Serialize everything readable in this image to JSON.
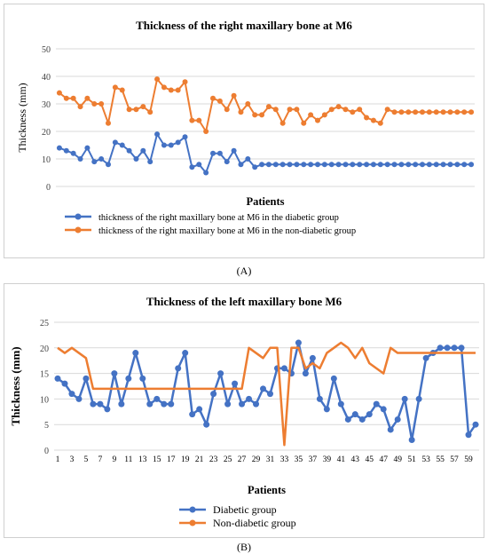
{
  "colors": {
    "diabetic": "#4472C4",
    "non_diabetic": "#ED7D31",
    "grid": "#d9d9d9",
    "axis_text": "#404040"
  },
  "captions": [
    "(A)",
    "(B)"
  ],
  "chart_data": [
    {
      "type": "line",
      "title": "Thickness of the right maxillary bone at M6",
      "xlabel": "Patients",
      "ylabel": "Thickness (mm)",
      "ylim": [
        0,
        50
      ],
      "yticks": [
        0,
        10,
        20,
        30,
        40,
        50
      ],
      "xticks_shown": false,
      "grid": true,
      "legend_position": "bottom",
      "markers": true,
      "x": [
        1,
        2,
        3,
        4,
        5,
        6,
        7,
        8,
        9,
        10,
        11,
        12,
        13,
        14,
        15,
        16,
        17,
        18,
        19,
        20,
        21,
        22,
        23,
        24,
        25,
        26,
        27,
        28,
        29,
        30,
        31,
        32,
        33,
        34,
        35,
        36,
        37,
        38,
        39,
        40,
        41,
        42,
        43,
        44,
        45,
        46,
        47,
        48,
        49,
        50,
        51,
        52,
        53,
        54,
        55,
        56,
        57,
        58,
        59,
        60
      ],
      "series": [
        {
          "name": "thickness of the right maxillary bone at M6 in the diabetic group",
          "color_key": "diabetic",
          "values": [
            14,
            13,
            12,
            10,
            14,
            9,
            10,
            8,
            16,
            15,
            13,
            10,
            13,
            9,
            19,
            15,
            15,
            16,
            18,
            7,
            8,
            5,
            12,
            12,
            9,
            13,
            8,
            10,
            7,
            8,
            8,
            8,
            8,
            8,
            8,
            8,
            8,
            8,
            8,
            8,
            8,
            8,
            8,
            8,
            8,
            8,
            8,
            8,
            8,
            8,
            8,
            8,
            8,
            8,
            8,
            8,
            8,
            8,
            8,
            8
          ]
        },
        {
          "name": "thickness of the right maxillary bone at M6 in the  non-diabetic group",
          "color_key": "non_diabetic",
          "values": [
            34,
            32,
            32,
            29,
            32,
            30,
            30,
            23,
            36,
            35,
            28,
            28,
            29,
            27,
            39,
            36,
            35,
            35,
            38,
            24,
            24,
            20,
            32,
            31,
            28,
            33,
            27,
            30,
            26,
            26,
            29,
            28,
            23,
            28,
            28,
            23,
            26,
            24,
            26,
            28,
            29,
            28,
            27,
            28,
            25,
            24,
            23,
            28,
            27,
            27,
            27,
            27,
            27,
            27,
            27,
            27,
            27,
            27,
            27,
            27
          ]
        }
      ]
    },
    {
      "type": "line",
      "title": "Thickness of the left maxillary bone M6",
      "xlabel": "Patients",
      "ylabel": "Thickness (mm)",
      "ylim": [
        0,
        25
      ],
      "yticks": [
        0,
        5,
        10,
        15,
        20,
        25
      ],
      "xticks_shown": true,
      "xtick_labels": [
        1,
        3,
        5,
        7,
        9,
        11,
        13,
        15,
        17,
        19,
        21,
        23,
        25,
        27,
        29,
        31,
        33,
        35,
        37,
        39,
        41,
        43,
        45,
        47,
        49,
        51,
        53,
        55,
        57,
        59
      ],
      "grid": true,
      "legend_position": "bottom",
      "x": [
        1,
        2,
        3,
        4,
        5,
        6,
        7,
        8,
        9,
        10,
        11,
        12,
        13,
        14,
        15,
        16,
        17,
        18,
        19,
        20,
        21,
        22,
        23,
        24,
        25,
        26,
        27,
        28,
        29,
        30,
        31,
        32,
        33,
        34,
        35,
        36,
        37,
        38,
        39,
        40,
        41,
        42,
        43,
        44,
        45,
        46,
        47,
        48,
        49,
        50,
        51,
        52,
        53,
        54,
        55,
        56,
        57,
        58,
        59,
        60
      ],
      "series": [
        {
          "name": "Diabetic group",
          "color_key": "diabetic",
          "markers": true,
          "values": [
            14,
            13,
            11,
            10,
            14,
            9,
            9,
            8,
            15,
            9,
            14,
            19,
            14,
            9,
            10,
            9,
            9,
            16,
            19,
            7,
            8,
            5,
            11,
            15,
            9,
            13,
            9,
            10,
            9,
            12,
            11,
            16,
            16,
            15,
            21,
            15,
            18,
            10,
            8,
            14,
            9,
            6,
            7,
            6,
            7,
            9,
            8,
            4,
            6,
            10,
            2,
            10,
            18,
            19,
            20,
            20,
            20,
            20,
            3,
            5
          ]
        },
        {
          "name": "Non-diabetic group",
          "color_key": "non_diabetic",
          "markers": false,
          "values": [
            20,
            19,
            20,
            19,
            18,
            12,
            12,
            12,
            12,
            12,
            12,
            12,
            12,
            12,
            12,
            12,
            12,
            12,
            12,
            12,
            12,
            12,
            12,
            12,
            12,
            12,
            12,
            20,
            19,
            18,
            20,
            20,
            1,
            20,
            20,
            16,
            17,
            16,
            19,
            20,
            21,
            20,
            18,
            20,
            17,
            16,
            15,
            20,
            19,
            19,
            19,
            19,
            19,
            19,
            19,
            19,
            19,
            19,
            19,
            19
          ]
        }
      ]
    }
  ]
}
